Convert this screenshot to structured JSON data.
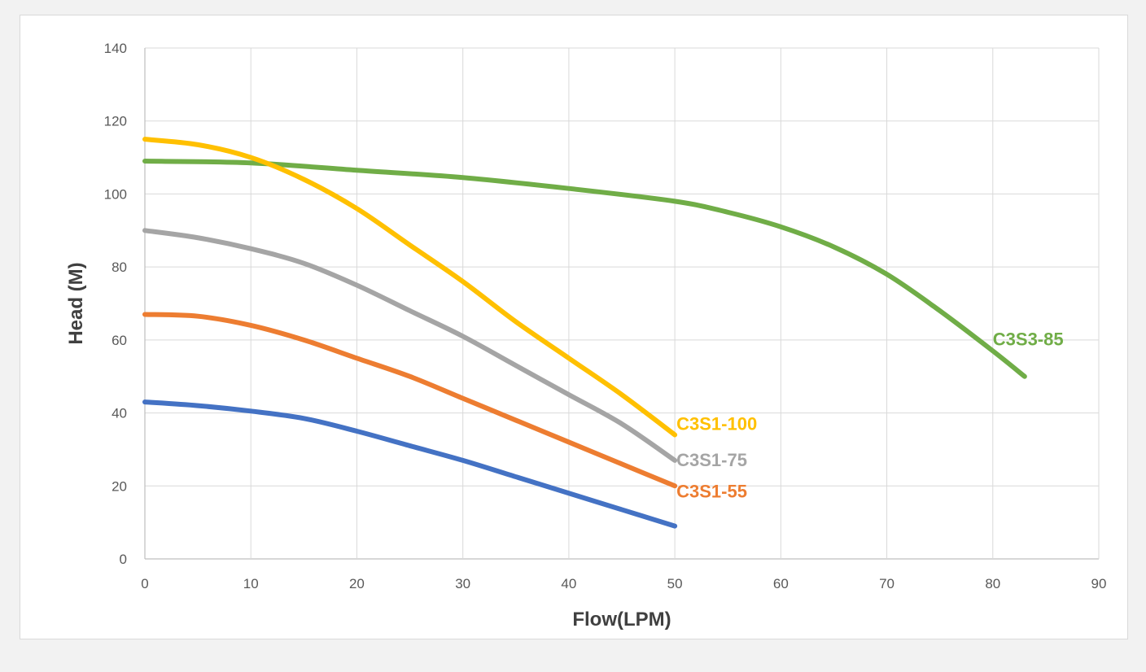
{
  "chart_data": {
    "type": "line",
    "title": "",
    "xlabel": "Flow(LPM)",
    "ylabel": "Head (M)",
    "xlim": [
      0,
      90
    ],
    "ylim": [
      0,
      140
    ],
    "xticks": [
      0,
      10,
      20,
      30,
      40,
      50,
      60,
      70,
      80,
      90
    ],
    "yticks": [
      0,
      20,
      40,
      60,
      80,
      100,
      120,
      140
    ],
    "grid": true,
    "legend": "none",
    "series": [
      {
        "name": "C3S3-85",
        "color": "#70ad47",
        "x": [
          0,
          10,
          20,
          30,
          40,
          50,
          55,
          60,
          65,
          70,
          75,
          80,
          83
        ],
        "y": [
          109,
          108.5,
          106.5,
          104.5,
          101.5,
          98,
          95,
          91,
          85.5,
          78,
          68,
          57,
          50
        ]
      },
      {
        "name": "C3S1-100",
        "color": "#ffc000",
        "x": [
          0,
          5,
          10,
          15,
          20,
          25,
          30,
          35,
          40,
          45,
          50
        ],
        "y": [
          115,
          113.5,
          110,
          104,
          96,
          86,
          76,
          65,
          55,
          45,
          34
        ]
      },
      {
        "name": "C3S1-75",
        "color": "#a5a5a5",
        "x": [
          0,
          5,
          10,
          15,
          20,
          25,
          30,
          35,
          40,
          45,
          50
        ],
        "y": [
          90,
          88,
          85,
          81,
          75,
          68,
          61,
          53,
          45,
          37,
          27
        ]
      },
      {
        "name": "C3S1-55",
        "color": "#ed7d31",
        "x": [
          0,
          5,
          10,
          15,
          20,
          25,
          30,
          35,
          40,
          45,
          50
        ],
        "y": [
          67,
          66.5,
          64,
          60,
          55,
          50,
          44,
          38,
          32,
          26,
          20
        ]
      },
      {
        "name": "",
        "color": "#4472c4",
        "x": [
          0,
          5,
          10,
          15,
          20,
          25,
          30,
          35,
          40,
          45,
          50
        ],
        "y": [
          43,
          42,
          40.5,
          38.5,
          35,
          31,
          27,
          22.5,
          18,
          13.5,
          9
        ]
      }
    ]
  }
}
